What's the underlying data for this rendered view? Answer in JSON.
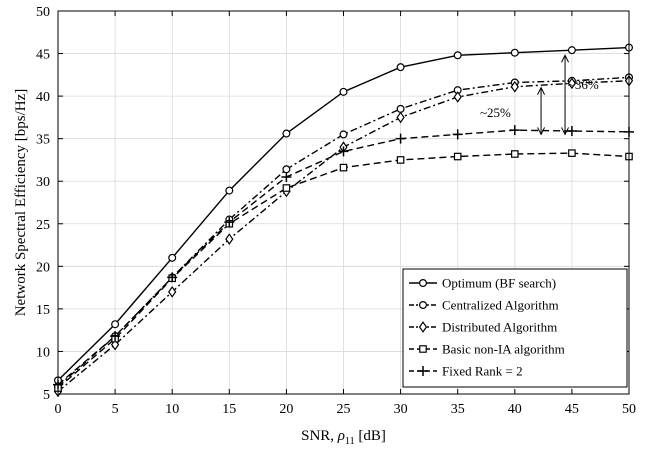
{
  "chart_data": {
    "type": "line",
    "xlabel": "SNR, ",
    "xlabel_symbol": "ρ",
    "xlabel_sub": "11",
    "xlabel_unit": " [dB]",
    "ylabel": "Network Spectral Efficiency [bps/Hz]",
    "xlim": [
      0,
      50
    ],
    "ylim": [
      5,
      50
    ],
    "xticks": [
      "0",
      "5",
      "10",
      "15",
      "20",
      "25",
      "30",
      "35",
      "40",
      "45",
      "50"
    ],
    "yticks": [
      "5",
      "10",
      "15",
      "20",
      "25",
      "30",
      "35",
      "40",
      "45",
      "50"
    ],
    "grid": true,
    "legend_position": "bottom-right",
    "x": [
      0,
      5,
      10,
      15,
      20,
      25,
      30,
      35,
      40,
      45,
      50
    ],
    "series": [
      {
        "name": "Optimum (BF search)",
        "marker": "circle",
        "dash": "solid",
        "values": [
          6.6,
          13.2,
          21.0,
          28.9,
          35.6,
          40.5,
          43.4,
          44.8,
          45.1,
          45.4,
          45.7
        ]
      },
      {
        "name": "Centralized Algorithm",
        "marker": "circle",
        "dash": "dashdot",
        "values": [
          5.9,
          11.8,
          18.7,
          25.5,
          31.4,
          35.5,
          38.5,
          40.7,
          41.6,
          41.8,
          42.2
        ]
      },
      {
        "name": "Distributed Algorithm",
        "marker": "diamond",
        "dash": "dashdot",
        "values": [
          5.3,
          10.8,
          17.0,
          23.2,
          28.8,
          34.0,
          37.5,
          39.9,
          41.1,
          41.5,
          41.8
        ]
      },
      {
        "name": "Basic non-IA algorithm",
        "marker": "square",
        "dash": "dashed",
        "values": [
          5.7,
          11.5,
          18.6,
          25.0,
          29.2,
          31.6,
          32.5,
          32.9,
          33.2,
          33.3,
          32.9
        ]
      },
      {
        "name": "Fixed Rank = 2",
        "marker": "plus",
        "dash": "dashed",
        "values": [
          6.1,
          11.8,
          18.7,
          25.2,
          30.5,
          33.5,
          35.0,
          35.5,
          36.0,
          35.9,
          35.8
        ]
      }
    ],
    "annotations": [
      {
        "text": "~25%",
        "x": 42.3,
        "y_from": 35.5,
        "y_to": 41.0,
        "label_x": 38.3,
        "label_y": 38.0
      },
      {
        "text": "~36%",
        "x": 44.4,
        "y_from": 35.5,
        "y_to": 44.8,
        "label_x": 46.0,
        "label_y": 41.3
      }
    ]
  }
}
